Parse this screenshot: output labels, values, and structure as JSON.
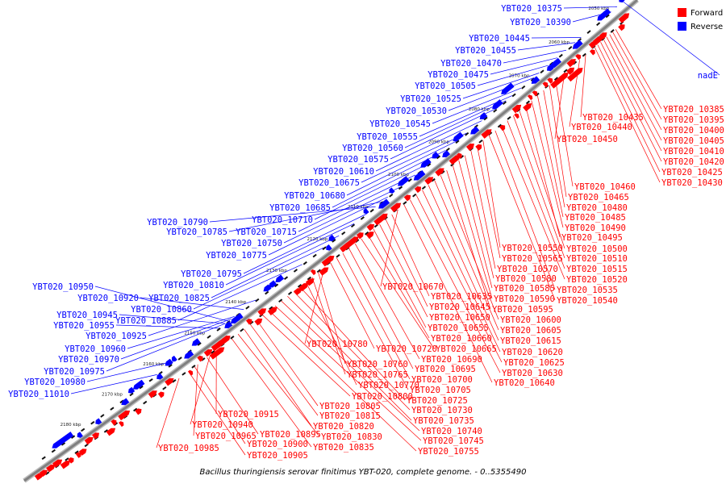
{
  "caption": "Bacillus thuringiensis serovar finitimus YBT-020, complete genome. - 0..5355490",
  "legend": [
    {
      "label": "Forward",
      "color": "#ff0000"
    },
    {
      "label": "Reverse",
      "color": "#0000ff"
    }
  ],
  "colors": {
    "forward": "#ff0000",
    "reverse": "#0000ff",
    "backbone": "#808080",
    "tick": "#000000"
  },
  "ticks": [
    "2050 kbp",
    "2060 kbp",
    "2070 kbp",
    "2080 kbp",
    "2090 kbp",
    "2100 kbp",
    "2110 kbp",
    "2120 kbp",
    "2130 kbp",
    "2140 kbp",
    "2150 kbp",
    "2160 kbp",
    "2170 kbp",
    "2180 kbp"
  ],
  "reverse_labels": [
    "YBT020_10375",
    "YBT020_10390",
    "YBT020_10445",
    "YBT020_10455",
    "YBT020_10470",
    "YBT020_10475",
    "YBT020_10505",
    "YBT020_10525",
    "YBT020_10530",
    "YBT020_10545",
    "YBT020_10555",
    "YBT020_10560",
    "YBT020_10575",
    "YBT020_10610",
    "YBT020_10675",
    "YBT020_10680",
    "YBT020_10685",
    "YBT020_10710",
    "YBT020_10790",
    "YBT020_10715",
    "YBT020_10785",
    "YBT020_10750",
    "YBT020_10775",
    "YBT020_10795",
    "YBT020_10810",
    "YBT020_10950",
    "YBT020_10825",
    "YBT020_10920",
    "YBT020_10860",
    "YBT020_10945",
    "YBT020_10885",
    "YBT020_10955",
    "YBT020_10925",
    "YBT020_10960",
    "YBT020_10970",
    "YBT020_10975",
    "YBT020_10980",
    "YBT020_11010",
    "nadE"
  ],
  "forward_labels_top": [
    "YBT020_10385",
    "YBT020_10395",
    "YBT020_10400",
    "YBT020_10405",
    "YBT020_10410",
    "YBT020_10420",
    "YBT020_10425",
    "YBT020_10430",
    "YBT020_10435",
    "YBT020_10440",
    "YBT020_10450"
  ],
  "forward_labels_mid": [
    "YBT020_10460",
    "YBT020_10465",
    "YBT020_10480",
    "YBT020_10485",
    "YBT020_10490",
    "YBT020_10495",
    "YBT020_10500",
    "YBT020_10510",
    "YBT020_10515",
    "YBT020_10520",
    "YBT020_10535",
    "YBT020_10540",
    "YBT020_10550",
    "YBT020_10565",
    "YBT020_10570",
    "YBT020_10580",
    "YBT020_10585",
    "YBT020_10590",
    "YBT020_10595",
    "YBT020_10600",
    "YBT020_10605",
    "YBT020_10615",
    "YBT020_10620",
    "YBT020_10625",
    "YBT020_10630",
    "YBT020_10640"
  ],
  "forward_labels_low": [
    "YBT020_10670",
    "YBT020_10635",
    "YBT020_10645",
    "YBT020_10650",
    "YBT020_10655",
    "YBT020_10660",
    "YBT020_10665",
    "YBT020_10690",
    "YBT020_10695",
    "YBT020_10700",
    "YBT020_10705",
    "YBT020_10720",
    "YBT020_10780",
    "YBT020_10760",
    "YBT020_10765",
    "YBT020_10770",
    "YBT020_10725",
    "YBT020_10730",
    "YBT020_10735",
    "YBT020_10740",
    "YBT020_10745",
    "YBT020_10755",
    "YBT020_10800",
    "YBT020_10805",
    "YBT020_10815",
    "YBT020_10820",
    "YBT020_10830",
    "YBT020_10835",
    "YBT020_10915",
    "YBT020_10940",
    "YBT020_10895",
    "YBT020_10965",
    "YBT020_10900",
    "YBT020_10985",
    "YBT020_10905"
  ]
}
